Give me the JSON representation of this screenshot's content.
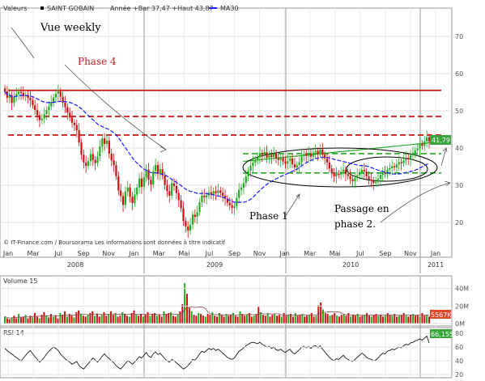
{
  "chart_data": {
    "type": "candlestick",
    "header": {
      "valeurs_label": "Valeurs",
      "instrument": "SAINT GOBAIN",
      "period_info": "Année +Bar 37,47 +Haut 43,87",
      "ma_label": "MA30",
      "ma_color": "#1a1aff"
    },
    "annotations": {
      "vue": "Vue weekly",
      "phase4": "Phase 4",
      "phase1": "Phase 1",
      "passage_line1": "Passage en",
      "passage_line2": "phase 2.",
      "source": "© IT-Finance.com / Boursorama Les informations sont données à titre indicatif",
      "last_price_label": "41,79"
    },
    "price_axis": {
      "ticks": [
        "70",
        "60",
        "50",
        "40",
        "30",
        "20"
      ],
      "ylim": [
        15,
        75
      ]
    },
    "x_axis": {
      "months": [
        "Jan",
        "Mar",
        "Jul",
        "Sep",
        "Nov",
        "Jan",
        "Mar",
        "Mai",
        "Jul",
        "Sep",
        "Nov",
        "Jan",
        "Mar",
        "Mai",
        "Jul",
        "Sep",
        "Nov",
        "Jan"
      ],
      "years": [
        "2008",
        "2009",
        "2010",
        "2011"
      ]
    },
    "horizontal_levels": [
      {
        "value": 55.5,
        "style": "solid",
        "color": "#cc0000"
      },
      {
        "value": 48.5,
        "style": "dashed",
        "color": "#cc0000"
      },
      {
        "value": 43.5,
        "style": "dashed",
        "color": "#cc0000"
      },
      {
        "value": 38.5,
        "style": "dashed",
        "color": "#22aa22"
      },
      {
        "value": 33.3,
        "style": "dashed",
        "color": "#22aa22"
      }
    ],
    "close_series": [
      55.2,
      53.5,
      54.2,
      52.1,
      53.8,
      54.5,
      55.1,
      54.8,
      53.9,
      54.2,
      53.5,
      52.8,
      51.5,
      50.2,
      48.8,
      47.5,
      47.9,
      49.1,
      50.2,
      51.2,
      52.4,
      53.6,
      54.6,
      55.2,
      53.8,
      52.2,
      51.0,
      49.5,
      48.2,
      46.8,
      46.2,
      44.8,
      41.5,
      38.2,
      36.1,
      35.2,
      36.5,
      38.4,
      36.8,
      36.0,
      37.8,
      40.4,
      42.6,
      41.1,
      42.0,
      38.5,
      36.7,
      35.4,
      32.4,
      28.6,
      27.1,
      24.7,
      28.3,
      29.4,
      26.9,
      25.2,
      27.5,
      29.4,
      31.8,
      29.6,
      32.1,
      34.2,
      31.5,
      30.2,
      33.8,
      35.4,
      33.1,
      34.3,
      32.6,
      30.1,
      28.4,
      27.2,
      30.5,
      29.8,
      27.9,
      26.0,
      23.8,
      20.4,
      18.9,
      17.8,
      19.4,
      22.1,
      21.5,
      22.8,
      25.4,
      27.2,
      26.8,
      27.3,
      28.1,
      27.5,
      28.4,
      27.9,
      28.6,
      28.0,
      27.2,
      26.4,
      25.3,
      24.6,
      23.9,
      24.4,
      26.6,
      28.8,
      29.4,
      30.6,
      32.4,
      33.9,
      35.2,
      36.1,
      36.8,
      37.5,
      38.6,
      38.2,
      38.9,
      37.4,
      38.2,
      37.6,
      38.5,
      37.2,
      36.8,
      37.3,
      36.4,
      35.8,
      36.5,
      37.2,
      35.6,
      34.8,
      35.4,
      36.2,
      37.8,
      38.4,
      37.9,
      38.6,
      37.7,
      38.8,
      39.2,
      38.5,
      39.6,
      38.2,
      37.2,
      36.1,
      34.5,
      33.2,
      32.4,
      33.1,
      32.8,
      33.6,
      34.2,
      33.0,
      32.5,
      31.6,
      31.1,
      31.9,
      32.7,
      33.4,
      34.1,
      33.7,
      32.4,
      31.5,
      31.2,
      30.6,
      30.9,
      31.7,
      32.8,
      33.4,
      33.0,
      34.2,
      34.6,
      35.1,
      34.8,
      35.6,
      36.2,
      35.9,
      36.7,
      37.4,
      37.0,
      38.1,
      38.6,
      39.4,
      39.9,
      41.2,
      40.6,
      41.8,
      42.9,
      41.79
    ],
    "volume_panel": {
      "label": "Volume 15",
      "ticks": [
        "40M",
        "20M",
        "0M"
      ],
      "last_label": "5567K",
      "max_m": 48,
      "bars_m": [
        8,
        6,
        5,
        7,
        9,
        6,
        11,
        7,
        8,
        10,
        6,
        9,
        7,
        12,
        8,
        6,
        10,
        13,
        9,
        7,
        11,
        8,
        9,
        6,
        12,
        10,
        14,
        8,
        11,
        9,
        7,
        13,
        15,
        11,
        9,
        8,
        10,
        12,
        14,
        9,
        11,
        8,
        10,
        13,
        9,
        11,
        14,
        10,
        12,
        8,
        9,
        13,
        11,
        9,
        8,
        12,
        15,
        10,
        9,
        11,
        8,
        10,
        13,
        9,
        11,
        12,
        9,
        10,
        8,
        14,
        11,
        12,
        13,
        9,
        8,
        10,
        14,
        22,
        46,
        34,
        18,
        14,
        10,
        9,
        12,
        11,
        9,
        8,
        11,
        10,
        13,
        9,
        8,
        12,
        10,
        8,
        11,
        9,
        10,
        12,
        9,
        8,
        14,
        11,
        9,
        10,
        12,
        8,
        9,
        11,
        19,
        13,
        10,
        9,
        12,
        8,
        10,
        11,
        9,
        10,
        8,
        12,
        9,
        10,
        11,
        8,
        12,
        9,
        10,
        11,
        8,
        9,
        10,
        12,
        8,
        9,
        21,
        24,
        16,
        12,
        11,
        9,
        10,
        12,
        9,
        8,
        10,
        11,
        9,
        12,
        8,
        10,
        9,
        11,
        8,
        9,
        10,
        12,
        9,
        8,
        10,
        11,
        9,
        10,
        8,
        9,
        12,
        10,
        9,
        11,
        8,
        9,
        10,
        12,
        9,
        8,
        10,
        11,
        9,
        10,
        8,
        12,
        9,
        10,
        8
      ]
    },
    "rsi_panel": {
      "label": "RSI 14",
      "ticks": [
        "80",
        "60",
        "40",
        "20"
      ],
      "last_label": "66,155",
      "values": [
        58,
        55,
        52,
        50,
        47,
        45,
        42,
        40,
        44,
        48,
        52,
        55,
        50,
        46,
        42,
        38,
        41,
        45,
        50,
        54,
        57,
        60,
        58,
        55,
        50,
        46,
        43,
        40,
        38,
        35,
        37,
        39,
        33,
        30,
        28,
        32,
        36,
        40,
        44,
        41,
        38,
        42,
        47,
        50,
        46,
        43,
        40,
        37,
        33,
        30,
        28,
        32,
        36,
        40,
        38,
        35,
        38,
        42,
        46,
        44,
        48,
        52,
        47,
        45,
        50,
        53,
        49,
        51,
        47,
        43,
        40,
        38,
        42,
        40,
        37,
        34,
        31,
        28,
        30,
        33,
        37,
        42,
        41,
        45,
        50,
        54,
        52,
        55,
        58,
        56,
        58,
        55,
        57,
        54,
        51,
        48,
        45,
        43,
        42,
        44,
        49,
        54,
        56,
        59,
        62,
        64,
        66,
        67,
        66,
        65,
        67,
        64,
        62,
        60,
        61,
        58,
        60,
        56,
        55,
        57,
        54,
        52,
        55,
        57,
        52,
        50,
        53,
        56,
        60,
        61,
        59,
        61,
        58,
        61,
        62,
        59,
        62,
        57,
        53,
        49,
        45,
        42,
        40,
        43,
        42,
        45,
        48,
        44,
        42,
        40,
        39,
        42,
        45,
        48,
        51,
        49,
        45,
        43,
        42,
        40,
        41,
        44,
        48,
        51,
        50,
        54,
        55,
        57,
        56,
        58,
        60,
        59,
        62,
        64,
        63,
        66,
        67,
        69,
        70,
        72,
        70,
        73,
        76,
        66
      ]
    }
  }
}
